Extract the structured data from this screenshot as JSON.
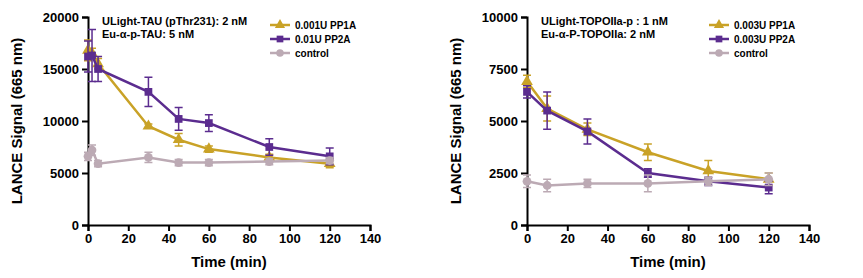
{
  "chart_data": [
    {
      "type": "line",
      "annotations": [
        "ULight-TAU (pThr231): 2 nM",
        "Eu-α-p-TAU: 5 nM"
      ],
      "x_label": "Time (min)",
      "y_label": "LANCE Signal (665 nm)",
      "x": [
        0,
        2,
        5,
        30,
        45,
        60,
        90,
        120
      ],
      "xlim": [
        0,
        140
      ],
      "xticks": [
        0,
        20,
        40,
        60,
        80,
        100,
        120,
        140
      ],
      "ylim": [
        0,
        20000
      ],
      "yticks": [
        0,
        5000,
        10000,
        15000,
        20000
      ],
      "legend": "top-right",
      "series": [
        {
          "name": "0.001U PP1A",
          "color": "#c9a227",
          "marker": "triangle",
          "values": [
            16800,
            16500,
            15500,
            9500,
            8200,
            7300,
            6500,
            5900
          ],
          "errors": [
            1000,
            500,
            500,
            200,
            600,
            300,
            300,
            400
          ]
        },
        {
          "name": "0.01U PP2A",
          "color": "#5b2c8f",
          "marker": "square",
          "values": [
            16200,
            16300,
            15000,
            12800,
            10200,
            9800,
            7500,
            6600
          ],
          "errors": [
            1500,
            2500,
            1200,
            1400,
            1100,
            800,
            800,
            800
          ]
        },
        {
          "name": "control",
          "color": "#bcaab4",
          "marker": "circle",
          "values": [
            6600,
            7200,
            5900,
            6500,
            6000,
            6000,
            6100,
            6200
          ],
          "errors": [
            400,
            500,
            300,
            500,
            300,
            300,
            300,
            300
          ]
        }
      ]
    },
    {
      "type": "line",
      "annotations": [
        "ULight-TOPOIIa-p : 1 nM",
        "Eu-α-P-TOPOIIa: 2 nM"
      ],
      "x_label": "Time (min)",
      "y_label": "LANCE Signal (665 nm)",
      "x": [
        0,
        10,
        30,
        60,
        90,
        120
      ],
      "xlim": [
        0,
        140
      ],
      "xticks": [
        0,
        20,
        40,
        60,
        80,
        100,
        120,
        140
      ],
      "ylim": [
        0,
        10000
      ],
      "yticks": [
        0,
        2500,
        5000,
        7500,
        10000
      ],
      "legend": "top-right",
      "series": [
        {
          "name": "0.003U PP1A",
          "color": "#c9a227",
          "marker": "triangle",
          "values": [
            6900,
            5600,
            4600,
            3500,
            2600,
            2200
          ],
          "errors": [
            300,
            600,
            300,
            400,
            500,
            300
          ]
        },
        {
          "name": "0.003U PP2A",
          "color": "#5b2c8f",
          "marker": "square",
          "values": [
            6400,
            5500,
            4500,
            2500,
            2100,
            1800
          ],
          "errors": [
            300,
            900,
            600,
            200,
            200,
            300
          ]
        },
        {
          "name": "control",
          "color": "#bcaab4",
          "marker": "circle",
          "values": [
            2100,
            1900,
            2000,
            2000,
            2100,
            2200
          ],
          "errors": [
            300,
            300,
            200,
            400,
            200,
            300
          ]
        }
      ]
    }
  ]
}
